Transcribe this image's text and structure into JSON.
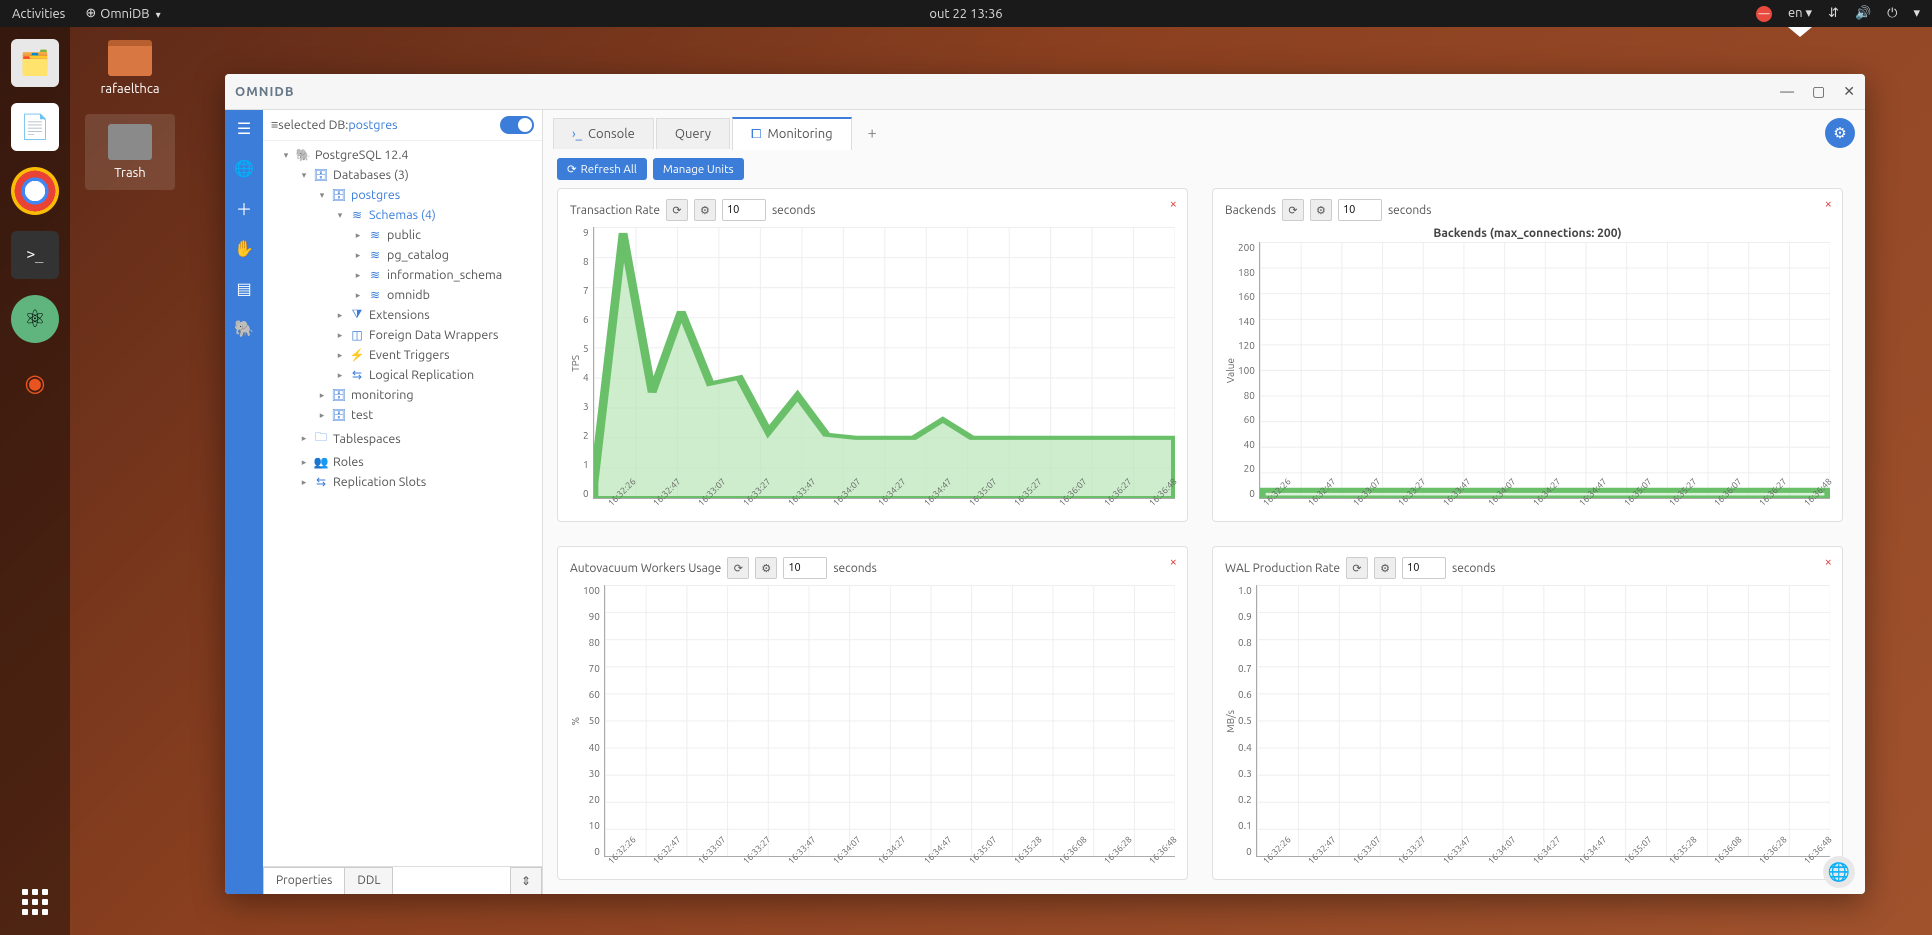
{
  "topbar": {
    "activities": "Activities",
    "app_name": "OmniDB",
    "datetime": "out 22  13:36",
    "lang": "en"
  },
  "desktop": {
    "folder": "rafaelthca",
    "trash": "Trash"
  },
  "window": {
    "title": "OMNIDB"
  },
  "tree": {
    "header_prefix": "selected DB: ",
    "header_db": "postgres",
    "root": "PostgreSQL 12.4",
    "databases": "Databases (3)",
    "postgres": "postgres",
    "schemas": "Schemas (4)",
    "public": "public",
    "pg_catalog": "pg_catalog",
    "information_schema": "information_schema",
    "omnidb": "omnidb",
    "extensions": "Extensions",
    "fdw": "Foreign Data Wrappers",
    "event_triggers": "Event Triggers",
    "logical_replication": "Logical Replication",
    "monitoring": "monitoring",
    "test": "test",
    "tablespaces": "Tablespaces",
    "roles": "Roles",
    "replication_slots": "Replication Slots"
  },
  "footer_tabs": {
    "properties": "Properties",
    "ddl": "DDL"
  },
  "tabs": {
    "console": "Console",
    "query": "Query",
    "monitoring": "Monitoring",
    "add": "+"
  },
  "toolbar": {
    "refresh_all": "Refresh All",
    "manage_units": "Manage Units"
  },
  "charts": {
    "x_labels": [
      "16:32:26",
      "16:32:47",
      "16:33:07",
      "16:33:27",
      "16:33:47",
      "16:34:07",
      "16:34:27",
      "16:34:47",
      "16:35:07",
      "16:35:27",
      "16:36:07",
      "16:36:27",
      "16:36:48"
    ],
    "x_labels_alt": [
      "16:32:26",
      "16:32:47",
      "16:33:07",
      "16:33:27",
      "16:33:47",
      "16:34:07",
      "16:34:27",
      "16:34:47",
      "16:35:07",
      "16:35:28",
      "16:36:08",
      "16:36:28",
      "16:36:48"
    ],
    "interval_value": "10",
    "interval_unit": "seconds",
    "tps": {
      "title": "Transaction Rate",
      "y_label": "TPS",
      "y_ticks": [
        "9",
        "8",
        "7",
        "6",
        "5",
        "4",
        "3",
        "2",
        "1",
        "0"
      ],
      "ymax": 9,
      "values": [
        0.5,
        8.8,
        3.5,
        6.2,
        3.8,
        4.0,
        2.2,
        3.4,
        2.1,
        2.0,
        2.0,
        2.0,
        2.6,
        2.0,
        2.0,
        2.0,
        2.0,
        2.0,
        2.0,
        2.0,
        2.0
      ],
      "color_fill": "#b8e6b8",
      "color_stroke": "#6abf69"
    },
    "backends": {
      "title": "Backends",
      "subtitle": "Backends (max_connections: 200)",
      "y_label": "Value",
      "y_ticks": [
        "200",
        "180",
        "160",
        "140",
        "120",
        "100",
        "80",
        "60",
        "40",
        "20",
        "0"
      ],
      "ymax": 200,
      "flat_value": 6,
      "color_fill": "#b8e6b8",
      "color_stroke": "#6abf69"
    },
    "autovacuum": {
      "title": "Autovacuum Workers Usage",
      "y_label": "%",
      "y_ticks": [
        "100",
        "90",
        "80",
        "70",
        "60",
        "50",
        "40",
        "30",
        "20",
        "10",
        "0"
      ],
      "ymax": 100,
      "flat_value": 0
    },
    "wal": {
      "title": "WAL Production Rate",
      "y_label": "MB/s",
      "y_ticks": [
        "1.0",
        "0.9",
        "0.8",
        "0.7",
        "0.6",
        "0.5",
        "0.4",
        "0.3",
        "0.2",
        "0.1",
        "0"
      ],
      "ymax": 1.0,
      "flat_value": 0
    }
  },
  "colors": {
    "accent": "#3b7dd8",
    "chart_fill": "#b8e6b8",
    "chart_stroke": "#6abf69",
    "grid": "#eeeeee",
    "card_border": "#e0e0e0"
  }
}
